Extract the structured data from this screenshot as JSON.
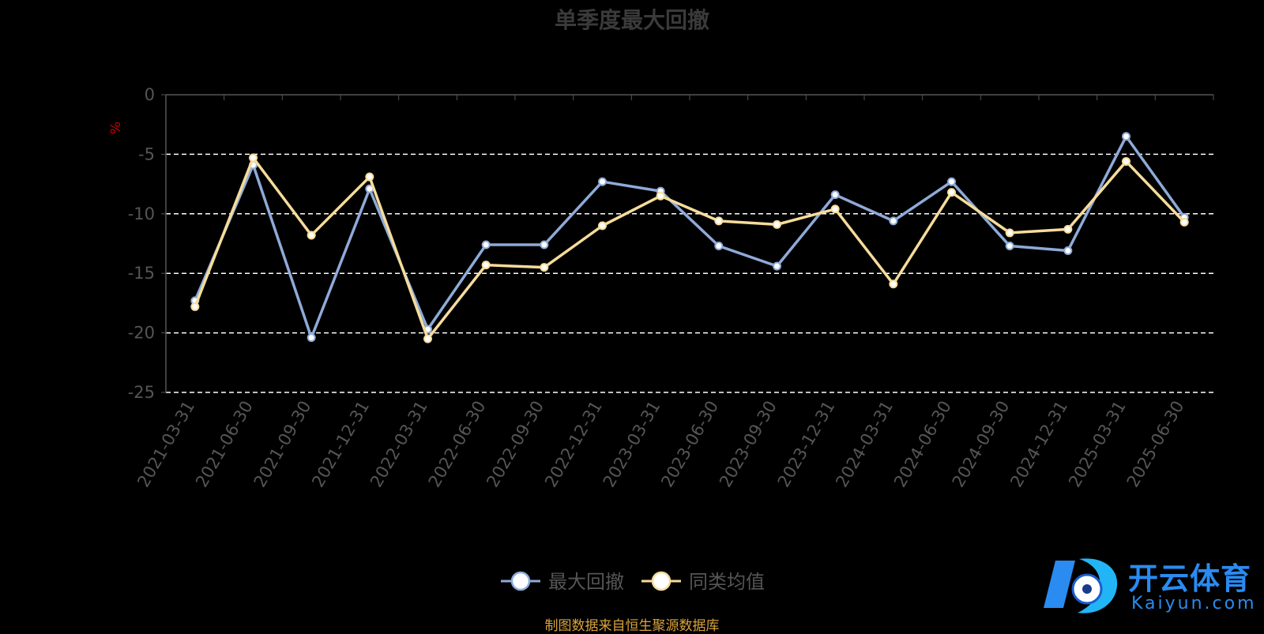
{
  "title": "单季度最大回撤",
  "source_note": "制图数据来自恒生聚源数据库",
  "watermark": {
    "brand": "开云体育",
    "url": "Kaiyun.com"
  },
  "colors": {
    "background": "#000000",
    "series_max_drawdown": "#8eaad8",
    "series_peer_avg": "#f6dc9a",
    "grid": "#ffffff",
    "axis_text": "#555555",
    "unit": "#cc0000",
    "title": "#3a3a3a",
    "source": "#d8a23c",
    "brand": "#2a8bf0"
  },
  "chart_data": {
    "type": "line",
    "title": "单季度最大回撤",
    "ylabel": "%",
    "ylim": [
      -25,
      0
    ],
    "yticks": [
      0,
      -5,
      -10,
      -15,
      -20,
      -25
    ],
    "grid": true,
    "legend_position": "bottom-center",
    "categories": [
      "2021-03-31",
      "2021-06-30",
      "2021-09-30",
      "2021-12-31",
      "2022-03-31",
      "2022-06-30",
      "2022-09-30",
      "2022-12-31",
      "2023-03-31",
      "2023-06-30",
      "2023-09-30",
      "2023-12-31",
      "2024-03-31",
      "2024-06-30",
      "2024-09-30",
      "2024-12-31",
      "2025-03-31",
      "2025-06-30"
    ],
    "series": [
      {
        "name": "最大回撤",
        "values": [
          -17.3,
          -5.9,
          -20.4,
          -7.9,
          -19.7,
          -12.6,
          -12.6,
          -7.3,
          -8.1,
          -12.7,
          -14.4,
          -8.4,
          -10.6,
          -7.3,
          -12.7,
          -13.1,
          -3.5,
          -10.3
        ]
      },
      {
        "name": "同类均值",
        "values": [
          -17.8,
          -5.3,
          -11.8,
          -6.9,
          -20.5,
          -14.3,
          -14.5,
          -11.0,
          -8.5,
          -10.6,
          -10.9,
          -9.6,
          -15.9,
          -8.2,
          -11.6,
          -11.3,
          -5.6,
          -10.7
        ]
      }
    ]
  }
}
